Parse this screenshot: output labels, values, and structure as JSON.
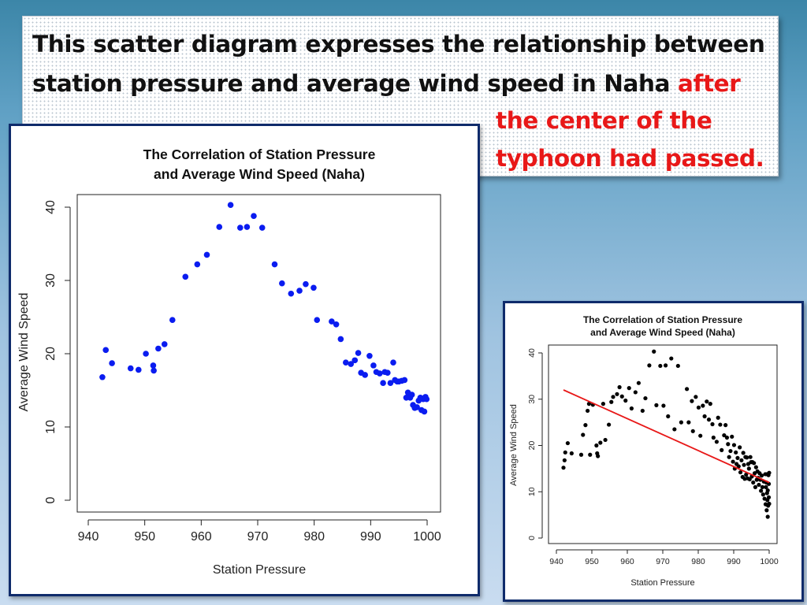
{
  "slide": {
    "heading_line1": "This scatter diagram expresses the relationship between",
    "heading_line2_black": "station pressure and average wind speed in Naha ",
    "heading_line2_red": "after",
    "heading_line3_red": "the center of the",
    "heading_line4_red": "typhoon had passed."
  },
  "colors": {
    "background_top": "#3c86a8",
    "panel_border": "#0f2b6b",
    "highlight_red": "#e81818",
    "points_left": "#0a1cf0",
    "points_right": "#000000",
    "regression_line": "#e81818"
  },
  "chart_data": [
    {
      "type": "scatter",
      "title": "The Correlation of Station Pressure",
      "subtitle": "and Average Wind Speed (Naha)",
      "xlabel": "Station Pressure",
      "ylabel": "Average Wind Speed",
      "xlim": [
        940,
        1000
      ],
      "ylim": [
        0,
        40
      ],
      "xticks": [
        940,
        950,
        960,
        970,
        980,
        990,
        1000
      ],
      "yticks": [
        0,
        10,
        20,
        30,
        40
      ],
      "grid": false,
      "series": [
        {
          "points": [
            [
              942.5,
              16.8
            ],
            [
              943.1,
              20.5
            ],
            [
              944.2,
              18.7
            ],
            [
              947.5,
              18.0
            ],
            [
              948.9,
              17.8
            ],
            [
              950.2,
              20.0
            ],
            [
              951.5,
              18.4
            ],
            [
              951.6,
              17.7
            ],
            [
              952.4,
              20.7
            ],
            [
              953.5,
              21.3
            ],
            [
              954.9,
              24.6
            ],
            [
              957.2,
              30.5
            ],
            [
              959.3,
              32.2
            ],
            [
              961.0,
              33.5
            ],
            [
              963.2,
              37.3
            ],
            [
              965.2,
              40.3
            ],
            [
              966.9,
              37.2
            ],
            [
              968.1,
              37.3
            ],
            [
              969.3,
              38.8
            ],
            [
              970.8,
              37.2
            ],
            [
              973.0,
              32.2
            ],
            [
              974.3,
              29.6
            ],
            [
              975.9,
              28.2
            ],
            [
              977.4,
              28.6
            ],
            [
              978.5,
              29.5
            ],
            [
              979.9,
              29.0
            ],
            [
              980.5,
              24.6
            ],
            [
              983.1,
              24.4
            ],
            [
              983.9,
              24.0
            ],
            [
              984.7,
              22.0
            ],
            [
              985.6,
              18.8
            ],
            [
              986.5,
              18.6
            ],
            [
              987.2,
              19.1
            ],
            [
              987.8,
              20.1
            ],
            [
              988.3,
              17.4
            ],
            [
              989.0,
              17.1
            ],
            [
              989.8,
              19.7
            ],
            [
              990.5,
              18.4
            ],
            [
              991.0,
              17.5
            ],
            [
              991.6,
              17.3
            ],
            [
              992.2,
              16.0
            ],
            [
              992.5,
              17.5
            ],
            [
              993.0,
              17.4
            ],
            [
              993.5,
              16.0
            ],
            [
              994.0,
              18.8
            ],
            [
              994.3,
              16.4
            ],
            [
              994.7,
              16.2
            ],
            [
              995.0,
              16.2
            ],
            [
              995.5,
              16.3
            ],
            [
              996.0,
              16.4
            ],
            [
              996.3,
              14.0
            ],
            [
              996.6,
              14.7
            ],
            [
              997.0,
              14.0
            ],
            [
              997.3,
              14.4
            ],
            [
              997.5,
              13.0
            ],
            [
              997.8,
              12.6
            ],
            [
              998.2,
              12.7
            ],
            [
              998.5,
              13.6
            ],
            [
              998.8,
              14.0
            ],
            [
              999.0,
              12.3
            ],
            [
              999.3,
              13.8
            ],
            [
              999.5,
              12.1
            ],
            [
              999.7,
              14.1
            ],
            [
              999.9,
              13.8
            ]
          ]
        }
      ]
    },
    {
      "type": "scatter",
      "title": "The Correlation of Station Pressure",
      "subtitle": "and Average Wind Speed (Naha)",
      "xlabel": "Station Pressure",
      "ylabel": "Average Wind Speed",
      "xlim": [
        940,
        1000
      ],
      "ylim": [
        0,
        40
      ],
      "xticks": [
        940,
        950,
        960,
        970,
        980,
        990,
        1000
      ],
      "yticks": [
        0,
        10,
        20,
        30,
        40
      ],
      "grid": false,
      "regression_line": {
        "x": [
          942,
          1000
        ],
        "y": [
          32.0,
          12.0
        ]
      },
      "series": [
        {
          "points": [
            [
              942,
              15.2
            ],
            [
              942.3,
              16.8
            ],
            [
              942.5,
              18.5
            ],
            [
              943.2,
              20.5
            ],
            [
              944.3,
              18.3
            ],
            [
              947,
              18
            ],
            [
              947.5,
              22.3
            ],
            [
              948.2,
              24.4
            ],
            [
              948.8,
              27.5
            ],
            [
              949.2,
              29
            ],
            [
              949.5,
              18
            ],
            [
              950.3,
              28.8
            ],
            [
              951.3,
              20
            ],
            [
              951.5,
              18.3
            ],
            [
              951.7,
              17.7
            ],
            [
              952.4,
              20.6
            ],
            [
              953.2,
              29
            ],
            [
              953.8,
              21.2
            ],
            [
              954.8,
              24.5
            ],
            [
              955.5,
              29.4
            ],
            [
              956,
              30.5
            ],
            [
              957.1,
              31.1
            ],
            [
              957.8,
              32.6
            ],
            [
              958.5,
              30.6
            ],
            [
              959.5,
              29.7
            ],
            [
              960.5,
              32.4
            ],
            [
              961.2,
              28
            ],
            [
              962.3,
              31.5
            ],
            [
              963.2,
              33.5
            ],
            [
              964.3,
              27.5
            ],
            [
              965.1,
              30.2
            ],
            [
              966.2,
              37.3
            ],
            [
              967.5,
              40.3
            ],
            [
              968.2,
              28.7
            ],
            [
              969.3,
              37.2
            ],
            [
              970.2,
              28.6
            ],
            [
              970.8,
              37.3
            ],
            [
              971.5,
              26.3
            ],
            [
              972.4,
              38.8
            ],
            [
              973.3,
              23.5
            ],
            [
              974.3,
              37.2
            ],
            [
              975.2,
              25
            ],
            [
              976.8,
              32.2
            ],
            [
              977.3,
              25
            ],
            [
              978.2,
              29.6
            ],
            [
              978.5,
              23.1
            ],
            [
              979.3,
              30.5
            ],
            [
              980.1,
              28.2
            ],
            [
              980.6,
              22.1
            ],
            [
              981.3,
              28.6
            ],
            [
              981.8,
              26.3
            ],
            [
              982.4,
              29.5
            ],
            [
              983,
              25.6
            ],
            [
              983.4,
              29
            ],
            [
              984,
              24.6
            ],
            [
              984.3,
              21.7
            ],
            [
              985.2,
              20.8
            ],
            [
              985.6,
              26
            ],
            [
              986.2,
              24.5
            ],
            [
              986.6,
              19
            ],
            [
              987.3,
              22.2
            ],
            [
              987.7,
              24.4
            ],
            [
              988.1,
              21.7
            ],
            [
              988.4,
              20.3
            ],
            [
              988.7,
              17.5
            ],
            [
              989.1,
              18.8
            ],
            [
              989.5,
              21.9
            ],
            [
              989.8,
              16.5
            ],
            [
              990.1,
              20.1
            ],
            [
              990.3,
              15
            ],
            [
              990.6,
              18.5
            ],
            [
              990.8,
              16
            ],
            [
              991.1,
              17.3
            ],
            [
              991.4,
              15.5
            ],
            [
              991.7,
              19.6
            ],
            [
              991.9,
              14.2
            ],
            [
              992.2,
              16.8
            ],
            [
              992.5,
              13.2
            ],
            [
              992.7,
              18.4
            ],
            [
              992.9,
              15.8
            ],
            [
              993.1,
              12.8
            ],
            [
              993.3,
              17.5
            ],
            [
              993.5,
              13.7
            ],
            [
              993.7,
              17.4
            ],
            [
              993.9,
              12.9
            ],
            [
              994.1,
              16
            ],
            [
              994.3,
              15
            ],
            [
              994.5,
              12.7
            ],
            [
              994.7,
              17.5
            ],
            [
              994.9,
              16.4
            ],
            [
              995.1,
              13.3
            ],
            [
              995.3,
              16.4
            ],
            [
              995.5,
              12
            ],
            [
              995.7,
              16.2
            ],
            [
              995.9,
              14
            ],
            [
              996.1,
              11
            ],
            [
              996.3,
              15.3
            ],
            [
              996.5,
              12.6
            ],
            [
              996.7,
              14.4
            ],
            [
              996.9,
              13
            ],
            [
              997.1,
              11.5
            ],
            [
              997.3,
              14
            ],
            [
              997.5,
              12.6
            ],
            [
              997.7,
              10.2
            ],
            [
              997.9,
              13.5
            ],
            [
              998.1,
              11
            ],
            [
              998.3,
              9.4
            ],
            [
              998.5,
              12.2
            ],
            [
              998.7,
              8.5
            ],
            [
              998.9,
              13.8
            ],
            [
              999.0,
              7.3
            ],
            [
              999.1,
              11
            ],
            [
              999.2,
              12
            ],
            [
              999.3,
              6
            ],
            [
              999.4,
              9.7
            ],
            [
              999.5,
              8.2
            ],
            [
              999.6,
              4.6
            ],
            [
              999.7,
              7
            ],
            [
              999.8,
              13.6
            ],
            [
              999.9,
              8.8
            ],
            [
              1000,
              7.4
            ],
            [
              1000,
              14.1
            ],
            [
              999.9,
              11.7
            ],
            [
              999.6,
              10.3
            ],
            [
              999.4,
              13.8
            ]
          ]
        }
      ]
    }
  ]
}
